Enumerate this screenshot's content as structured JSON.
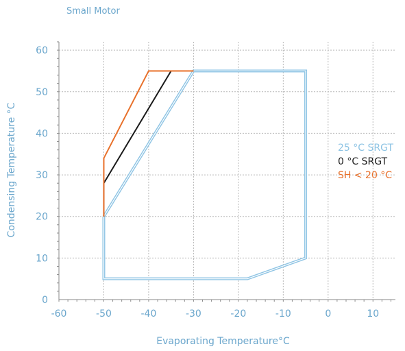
{
  "chart_data": {
    "type": "line",
    "title": "Small Motor",
    "xlabel": "Evaporating Temperature°C",
    "ylabel": "Condensing Temperature °C",
    "xlim": [
      -60,
      15
    ],
    "ylim": [
      0,
      62
    ],
    "xticks": [
      -60,
      -50,
      -40,
      -30,
      -20,
      -10,
      0,
      10
    ],
    "yticks": [
      0,
      10,
      20,
      30,
      40,
      50,
      60
    ],
    "grid": true,
    "legend_position": "right",
    "series": [
      {
        "name": "25 °C SRGT",
        "color": "#8ec4e4",
        "x": [
          -50,
          -30,
          -5,
          -5,
          -18,
          -50,
          -50
        ],
        "y": [
          20,
          55,
          55,
          10,
          5,
          5,
          20
        ]
      },
      {
        "name": "0 °C SRGT",
        "color": "#1a1a1a",
        "x": [
          -50,
          -50,
          -35,
          -30
        ],
        "y": [
          20,
          28,
          55,
          55
        ]
      },
      {
        "name": "SH < 20 °C",
        "color": "#e8702a",
        "x": [
          -50,
          -50,
          -40,
          -30
        ],
        "y": [
          20,
          34,
          55,
          55
        ]
      }
    ]
  }
}
